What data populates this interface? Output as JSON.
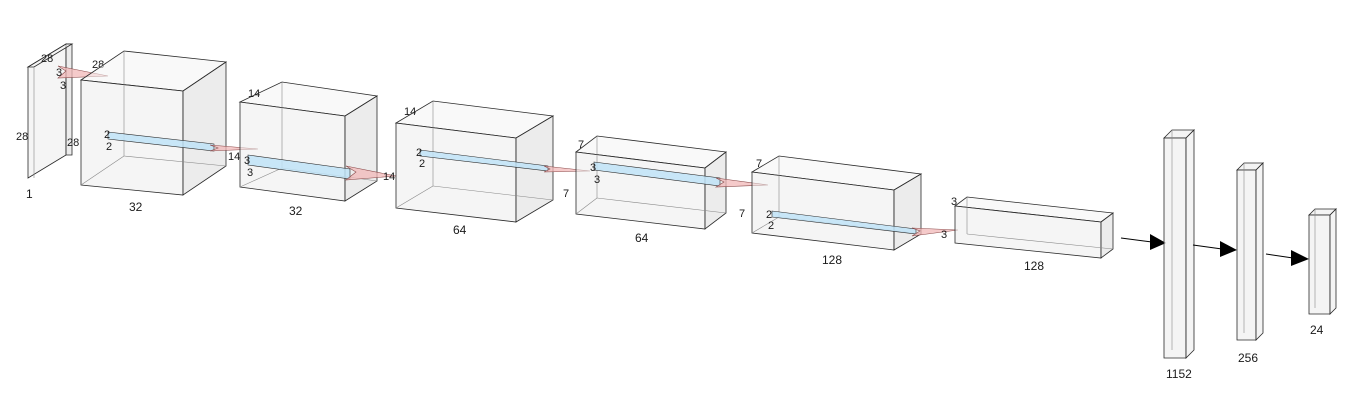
{
  "input": {
    "height": "28",
    "width": "28",
    "depth": "1",
    "kernel_a": "3",
    "kernel_b": "3",
    "out_a": "28",
    "out_b": "28"
  },
  "conv1": {
    "top_label": "28",
    "side_label": "28",
    "depth": "32",
    "kernel_a": "2",
    "kernel_b": "2",
    "out_a": "14"
  },
  "pool1": {
    "top_label": "14",
    "depth": "32",
    "kernel_a": "3",
    "kernel_b": "3",
    "out_a": "14"
  },
  "conv2": {
    "top_label": "14",
    "depth": "64",
    "kernel_a": "2",
    "kernel_b": "2",
    "out_a": "7"
  },
  "pool2": {
    "top_label": "7",
    "depth": "64",
    "kernel_a": "3",
    "kernel_b": "3"
  },
  "conv3": {
    "top_label": "7",
    "side_label": "7",
    "depth": "128",
    "kernel_a": "2",
    "kernel_b": "2",
    "out_a": "3"
  },
  "pool3": {
    "top_label": "3",
    "depth": "128"
  },
  "fc1": {
    "units": "1152"
  },
  "fc2": {
    "units": "256"
  },
  "fc3": {
    "units": "24"
  }
}
